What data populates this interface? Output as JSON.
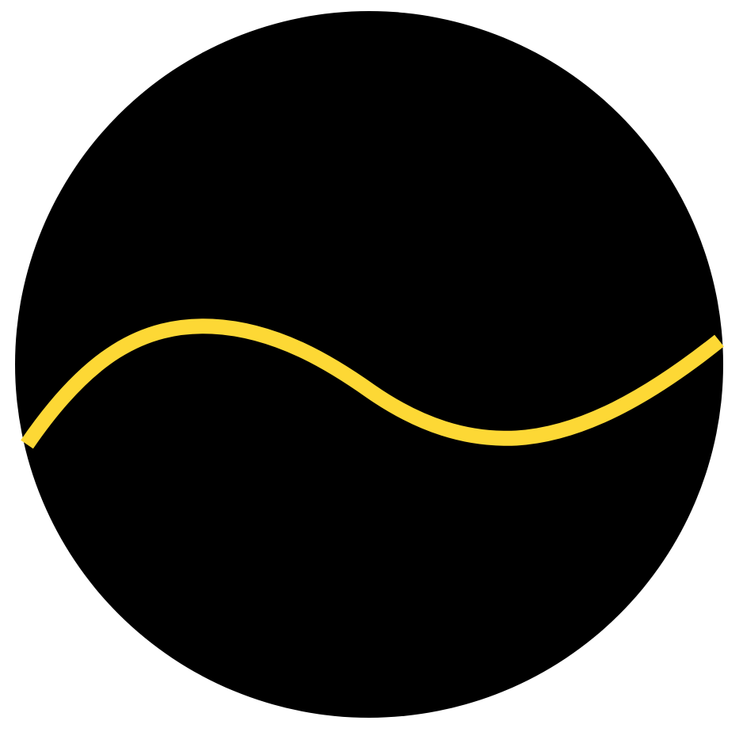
{
  "figure": {
    "background_color": "#ffffff",
    "disc_color": "#000000",
    "wave_color": "#fdd835",
    "shapes": [
      "circle",
      "wavy-line"
    ]
  }
}
